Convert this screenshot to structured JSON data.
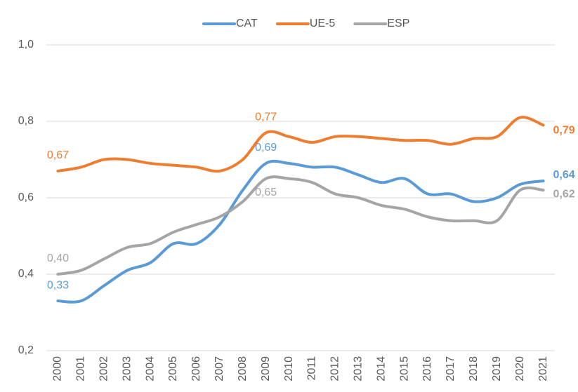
{
  "chart_data": {
    "type": "line",
    "categories": [
      "2000",
      "2001",
      "2002",
      "2003",
      "2004",
      "2005",
      "2006",
      "2007",
      "2008",
      "2009",
      "2010",
      "2011",
      "2012",
      "2013",
      "2014",
      "2015",
      "2016",
      "2017",
      "2018",
      "2019",
      "2020",
      "2021"
    ],
    "series": [
      {
        "name": "CAT",
        "color": "#5b9bd5",
        "values": [
          0.33,
          0.33,
          0.37,
          0.41,
          0.43,
          0.48,
          0.48,
          0.53,
          0.62,
          0.69,
          0.69,
          0.68,
          0.68,
          0.66,
          0.64,
          0.65,
          0.61,
          0.61,
          0.59,
          0.6,
          0.635,
          0.644
        ],
        "value_labels": [
          "0,33",
          null,
          null,
          null,
          null,
          null,
          null,
          null,
          null,
          "0,69",
          null,
          null,
          null,
          null,
          null,
          null,
          null,
          null,
          null,
          null,
          null,
          "0,64"
        ]
      },
      {
        "name": "UE-5",
        "color": "#ed7d31",
        "values": [
          0.67,
          0.68,
          0.7,
          0.7,
          0.69,
          0.685,
          0.68,
          0.67,
          0.7,
          0.77,
          0.76,
          0.745,
          0.76,
          0.76,
          0.755,
          0.75,
          0.75,
          0.74,
          0.755,
          0.76,
          0.81,
          0.79
        ],
        "value_labels": [
          "0,67",
          null,
          null,
          null,
          null,
          null,
          null,
          null,
          null,
          "0,77",
          null,
          null,
          null,
          null,
          null,
          null,
          null,
          null,
          null,
          null,
          null,
          "0,79"
        ]
      },
      {
        "name": "ESP",
        "color": "#a5a5a5",
        "values": [
          0.4,
          0.41,
          0.44,
          0.47,
          0.48,
          0.51,
          0.53,
          0.55,
          0.59,
          0.65,
          0.65,
          0.64,
          0.61,
          0.6,
          0.58,
          0.57,
          0.55,
          0.54,
          0.54,
          0.54,
          0.62,
          0.62
        ],
        "value_labels": [
          "0,40",
          null,
          null,
          null,
          null,
          null,
          null,
          null,
          null,
          "0,65",
          null,
          null,
          null,
          null,
          null,
          null,
          null,
          null,
          null,
          null,
          null,
          "0,62"
        ]
      }
    ],
    "ylim": [
      0.2,
      1.0
    ],
    "yticks": [
      {
        "value": 0.2,
        "label": "0,2"
      },
      {
        "value": 0.4,
        "label": "0,4"
      },
      {
        "value": 0.6,
        "label": "0,6"
      },
      {
        "value": 0.8,
        "label": "0,8"
      },
      {
        "value": 1.0,
        "label": "1,0"
      }
    ],
    "grid": true,
    "legend": "top"
  }
}
